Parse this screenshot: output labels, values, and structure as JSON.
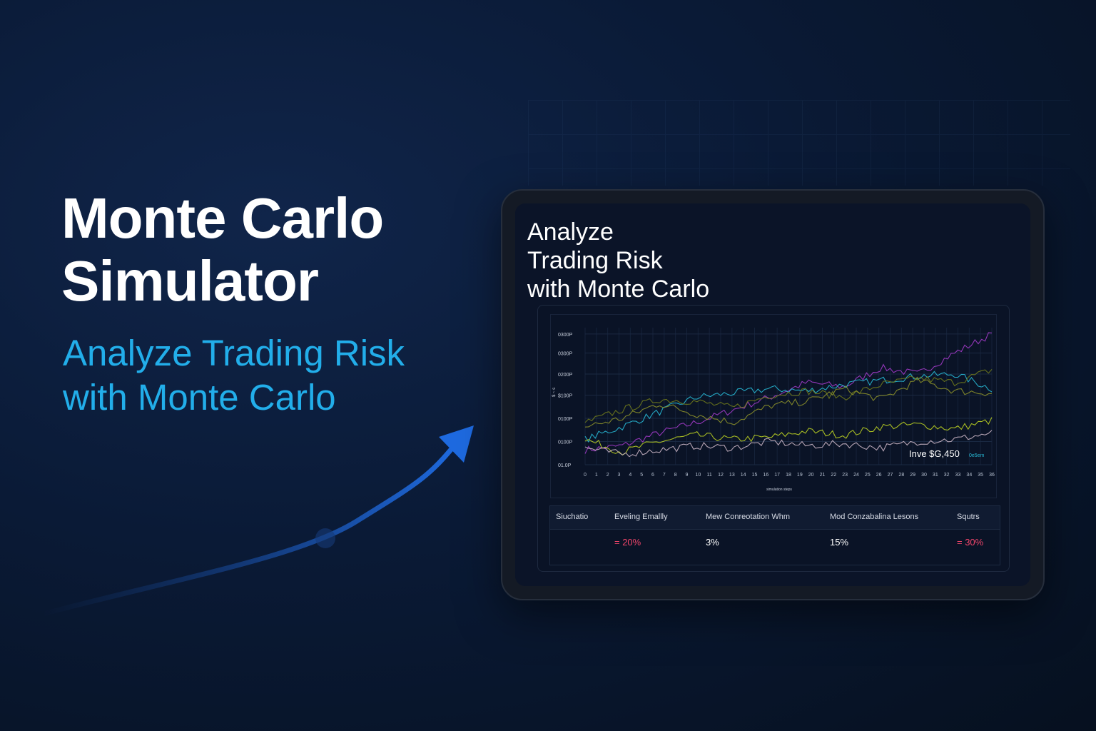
{
  "hero": {
    "title_line1": "Monte Carlo",
    "title_line2": "Simulator",
    "subtitle_line1": "Analyze Trading Risk",
    "subtitle_line2": "with Monte Carlo"
  },
  "colors": {
    "accent": "#22aeea",
    "negative": "#f0456a",
    "background": "#0a1a36"
  },
  "screen": {
    "title_line1": "Analyze",
    "title_line2": "Trading Risk",
    "title_line3": "with Monte Carlo"
  },
  "chart_data": {
    "type": "line",
    "title": "",
    "y_ticks": [
      "0300P",
      "0300P",
      "0200P",
      "$100P",
      "0100P",
      "0100P",
      "01.0P"
    ],
    "ylabel": "$ ~ s",
    "xlabel": "simulation steps",
    "grid": true,
    "annotation": "Inve $G,450",
    "annotation_tag": "0e5em",
    "series": [
      {
        "color": "#a23bc9",
        "values": [
          0.7,
          0.9,
          1.5,
          2.0,
          2.6,
          3.2,
          3.9,
          3.7,
          4.6,
          4.3,
          5.3,
          6.2
        ]
      },
      {
        "color": "#27b8d4",
        "values": [
          1.2,
          1.8,
          2.5,
          3.2,
          3.4,
          3.6,
          3.5,
          3.8,
          4.0,
          4.2,
          4.3,
          3.6
        ]
      },
      {
        "color": "#b9cf22",
        "values": [
          1.2,
          0.6,
          1.1,
          1.4,
          1.2,
          1.3,
          1.6,
          1.4,
          1.8,
          1.9,
          1.7,
          2.1
        ]
      },
      {
        "color": "#6f7a1c",
        "values": [
          2.0,
          2.6,
          3.1,
          3.0,
          2.7,
          3.3,
          3.5,
          3.2,
          3.8,
          4.1,
          3.9,
          4.5
        ]
      },
      {
        "color": "#8a8f2a",
        "values": [
          1.8,
          2.2,
          2.9,
          2.4,
          2.0,
          2.8,
          3.0,
          3.6,
          3.1,
          4.0,
          3.5,
          3.4
        ]
      },
      {
        "color": "#c7b3c2",
        "values": [
          0.8,
          0.5,
          0.7,
          0.9,
          0.8,
          1.1,
          0.9,
          1.0,
          0.8,
          1.1,
          1.2,
          1.5
        ]
      }
    ]
  },
  "table": {
    "headers": [
      "Siuchatio",
      "Eveling Emallly",
      "Mew Conreotation Whm",
      "Mod Conzabalina Lesons",
      "Squtrs"
    ],
    "values": [
      "",
      "= 20%",
      "3%",
      "15%",
      "= 30%"
    ]
  }
}
